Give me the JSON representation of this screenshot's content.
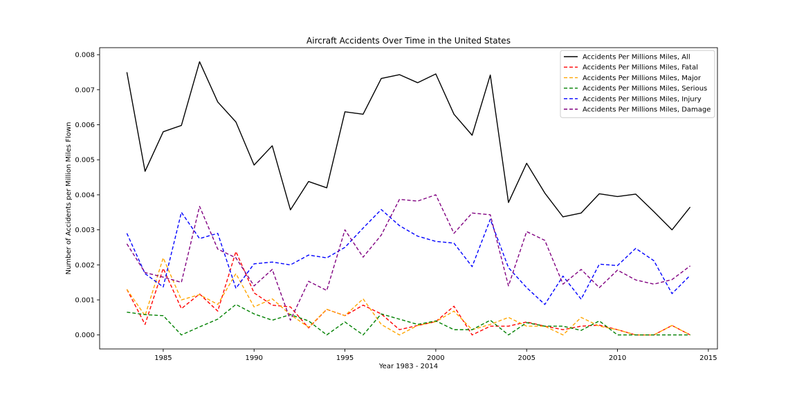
{
  "chart_data": {
    "type": "line",
    "title": "Aircraft Accidents Over Time in the United States",
    "xlabel": "Year 1983 - 2014",
    "ylabel": "Number of Accidents per Million Miles Flown",
    "xlim": [
      1981.5,
      2015.5
    ],
    "ylim": [
      -0.0004,
      0.0082
    ],
    "xticks": [
      1985,
      1990,
      1995,
      2000,
      2005,
      2010,
      2015
    ],
    "xtick_labels": [
      "1985",
      "1990",
      "1995",
      "2000",
      "2005",
      "2010",
      "2015"
    ],
    "yticks": [
      0,
      0.001,
      0.002,
      0.003,
      0.004,
      0.005,
      0.006,
      0.007,
      0.008
    ],
    "ytick_labels": [
      "0.000",
      "0.001",
      "0.002",
      "0.003",
      "0.004",
      "0.005",
      "0.006",
      "0.007",
      "0.008"
    ],
    "grid": false,
    "legend_position": "top-right",
    "x": [
      1983,
      1984,
      1985,
      1986,
      1987,
      1988,
      1989,
      1990,
      1991,
      1992,
      1993,
      1994,
      1995,
      1996,
      1997,
      1998,
      1999,
      2000,
      2001,
      2002,
      2003,
      2004,
      2005,
      2006,
      2007,
      2008,
      2009,
      2010,
      2011,
      2012,
      2013,
      2014
    ],
    "series": [
      {
        "name": "Accidents Per Millions Miles, All",
        "color": "#000000",
        "dashed": false,
        "values": [
          0.0075,
          0.00467,
          0.0058,
          0.00598,
          0.0078,
          0.00665,
          0.00608,
          0.00485,
          0.0054,
          0.00357,
          0.00438,
          0.0042,
          0.00637,
          0.0063,
          0.00732,
          0.00743,
          0.0072,
          0.00745,
          0.0063,
          0.0057,
          0.00742,
          0.00378,
          0.0049,
          0.00405,
          0.00337,
          0.00348,
          0.00403,
          0.00395,
          0.00402,
          0.00352,
          0.003,
          0.00365
        ]
      },
      {
        "name": "Accidents Per Millions Miles, Fatal",
        "color": "#ff0000",
        "dashed": true,
        "values": [
          0.0013,
          0.0003,
          0.0019,
          0.00075,
          0.00117,
          0.00068,
          0.00238,
          0.0012,
          0.00085,
          0.0008,
          0.0002,
          0.00073,
          0.00055,
          0.00085,
          0.0006,
          0.00015,
          0.00027,
          0.00038,
          0.00082,
          0.0,
          0.00025,
          0.00025,
          0.00037,
          0.00025,
          0.00015,
          0.00025,
          0.00028,
          0.00015,
          0.0,
          0.0,
          0.00027,
          0.0
        ]
      },
      {
        "name": "Accidents Per Millions Miles, Major",
        "color": "#ffa500",
        "dashed": true,
        "values": [
          0.0013,
          0.00055,
          0.0022,
          0.001,
          0.00115,
          0.00087,
          0.00175,
          0.0008,
          0.00103,
          0.00058,
          0.00022,
          0.00073,
          0.00055,
          0.00103,
          0.0003,
          0.0,
          0.00027,
          0.00038,
          0.00068,
          0.00015,
          0.0003,
          0.0005,
          0.00025,
          0.00025,
          0.0,
          0.0005,
          0.00025,
          0.00015,
          0.0,
          0.0,
          0.00027,
          0.0
        ]
      },
      {
        "name": "Accidents Per Millions Miles, Serious",
        "color": "#008000",
        "dashed": true,
        "values": [
          0.00065,
          0.00058,
          0.00055,
          0.0,
          0.00023,
          0.00045,
          0.00087,
          0.0006,
          0.00042,
          0.00058,
          0.0004,
          0.0,
          0.00037,
          0.0,
          0.0006,
          0.00045,
          0.0003,
          0.0004,
          0.00015,
          0.00015,
          0.00042,
          0.0,
          0.00035,
          0.00025,
          0.00025,
          0.00013,
          0.0004,
          0.0,
          0.0,
          0.0,
          0.0,
          0.0
        ]
      },
      {
        "name": "Accidents Per Millions Miles, Injury",
        "color": "#0000ff",
        "dashed": true,
        "values": [
          0.0029,
          0.00175,
          0.00137,
          0.0035,
          0.00275,
          0.0029,
          0.00133,
          0.00203,
          0.00208,
          0.002,
          0.00228,
          0.0022,
          0.0025,
          0.00305,
          0.00358,
          0.00312,
          0.00282,
          0.00267,
          0.00262,
          0.00195,
          0.0033,
          0.00192,
          0.00135,
          0.00087,
          0.00168,
          0.00102,
          0.00202,
          0.00198,
          0.00247,
          0.00212,
          0.00118,
          0.0017
        ]
      },
      {
        "name": "Accidents Per Millions Miles, Damage",
        "color": "#800080",
        "dashed": true,
        "values": [
          0.0026,
          0.00178,
          0.00165,
          0.0015,
          0.00367,
          0.00245,
          0.0022,
          0.0014,
          0.00187,
          0.00042,
          0.00153,
          0.00127,
          0.003,
          0.00222,
          0.00285,
          0.00387,
          0.00382,
          0.004,
          0.0029,
          0.00348,
          0.00343,
          0.0014,
          0.00295,
          0.0027,
          0.00145,
          0.00187,
          0.00135,
          0.00185,
          0.00157,
          0.00145,
          0.00158,
          0.00197
        ]
      }
    ]
  }
}
